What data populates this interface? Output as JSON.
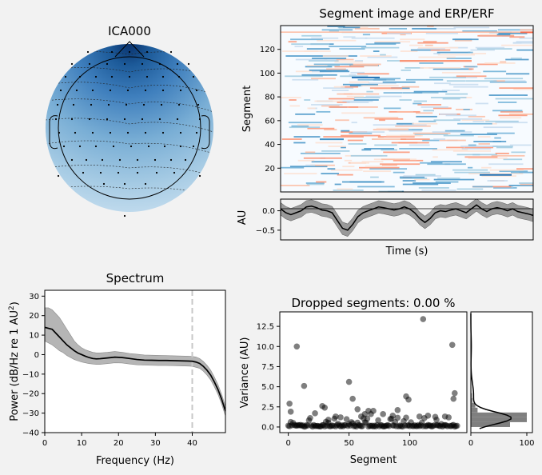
{
  "chart_data": [
    {
      "type": "heatmap",
      "panel": "topomap",
      "title": "ICA000",
      "colormap": "RdBu_r (blue-dominant, dark at front, light at back)"
    },
    {
      "type": "heatmap",
      "panel": "segment-image",
      "title": "Segment image and ERP/ERF",
      "ylabel": "Segment",
      "ylim": [
        0,
        140
      ],
      "yticks": [
        20,
        40,
        60,
        80,
        100,
        120
      ],
      "segments": 140
    },
    {
      "type": "line",
      "panel": "erp",
      "xlabel": "Time (s)",
      "ylabel": "AU",
      "ylim": [
        -0.75,
        0.3
      ],
      "yticks": [
        -0.5,
        0.0
      ],
      "yticklabels": [
        "−0.5",
        "0.0"
      ],
      "mean": [
        0.05,
        -0.05,
        -0.1,
        -0.05,
        0.0,
        0.1,
        0.12,
        0.08,
        0.02,
        0.0,
        -0.05,
        -0.25,
        -0.45,
        -0.5,
        -0.35,
        -0.15,
        -0.05,
        0.0,
        0.05,
        0.1,
        0.08,
        0.05,
        0.02,
        0.05,
        0.1,
        0.05,
        -0.05,
        -0.2,
        -0.3,
        -0.2,
        -0.05,
        0.0,
        -0.02,
        0.02,
        0.05,
        0.0,
        -0.05,
        0.05,
        0.15,
        0.05,
        -0.02,
        0.05,
        0.08,
        0.05,
        0.0,
        0.05,
        -0.02,
        -0.05,
        -0.08,
        -0.12
      ],
      "ci_halfwidth": 0.16
    },
    {
      "type": "line",
      "panel": "spectrum",
      "title": "Spectrum",
      "xlabel": "Frequency (Hz)",
      "ylabel": "Power (dB/Hz re 1 AU²)",
      "xlim": [
        0,
        49
      ],
      "ylim": [
        -40,
        33
      ],
      "xticks": [
        0,
        10,
        20,
        30,
        40
      ],
      "yticks": [
        -40,
        -30,
        -20,
        -10,
        0,
        10,
        20,
        30
      ],
      "yticklabels": [
        "−40",
        "−30",
        "−20",
        "−10",
        "0",
        "10",
        "20",
        "30"
      ],
      "x": [
        0,
        1,
        2,
        3,
        4,
        5,
        6,
        7,
        8,
        9,
        10,
        11,
        12,
        13,
        14,
        15,
        17,
        19,
        21,
        23,
        25,
        27,
        29,
        31,
        33,
        35,
        37,
        39,
        40,
        41,
        42,
        43,
        44,
        45,
        46,
        47,
        48,
        49
      ],
      "mean": [
        14,
        13.5,
        13,
        11,
        9,
        7,
        5,
        3.5,
        2,
        0.8,
        0,
        -0.8,
        -1.5,
        -2,
        -2.2,
        -2.1,
        -1.7,
        -1.3,
        -1.5,
        -2,
        -2.5,
        -2.8,
        -2.9,
        -3,
        -3,
        -3.1,
        -3.2,
        -3.3,
        -3.4,
        -3.8,
        -4.5,
        -6,
        -8,
        -10.5,
        -14,
        -18,
        -23,
        -29
      ],
      "upper": [
        24,
        24,
        23,
        21,
        19,
        16,
        13,
        10,
        7,
        5,
        3.5,
        2.5,
        1.8,
        1.2,
        0.9,
        0.9,
        1.2,
        1.6,
        1.2,
        0.6,
        0.2,
        -0.2,
        -0.3,
        -0.4,
        -0.5,
        -0.6,
        -0.7,
        -0.8,
        -0.9,
        -1.2,
        -2,
        -3.5,
        -5.5,
        -8,
        -11.5,
        -15.5,
        -20.5,
        -26.5
      ],
      "lower": [
        7,
        6,
        5,
        3.5,
        2,
        1,
        -0.5,
        -1.5,
        -2.5,
        -3.2,
        -3.8,
        -4.2,
        -4.6,
        -4.8,
        -5,
        -5,
        -4.6,
        -4.2,
        -4.3,
        -4.8,
        -5.2,
        -5.4,
        -5.5,
        -5.6,
        -5.6,
        -5.7,
        -5.8,
        -5.9,
        -6,
        -6.5,
        -7,
        -8.5,
        -10.5,
        -13,
        -16.5,
        -20.5,
        -25.5,
        -31.5
      ],
      "vline_x": 40
    },
    {
      "type": "scatter",
      "panel": "dropped-segments",
      "title": "Dropped segments: 0.00 %",
      "xlabel": "Segment",
      "ylabel": "Variance (AU)",
      "xlim": [
        -7,
        147
      ],
      "ylim": [
        -0.7,
        14.3
      ],
      "xticks": [
        0,
        50,
        100
      ],
      "yticks": [
        0,
        2.5,
        5,
        7.5,
        10,
        12.5
      ],
      "yticklabels": [
        "0.0",
        "2.5",
        "5.0",
        "7.5",
        "10.0",
        "12.5"
      ],
      "outliers": [
        [
          1,
          2.9
        ],
        [
          2,
          1.9
        ],
        [
          7,
          10.0
        ],
        [
          13,
          5.1
        ],
        [
          22,
          1.7
        ],
        [
          28,
          2.6
        ],
        [
          30,
          2.4
        ],
        [
          33,
          0.9
        ],
        [
          39,
          1.3
        ],
        [
          43,
          1.2
        ],
        [
          50,
          5.6
        ],
        [
          53,
          3.5
        ],
        [
          57,
          2.2
        ],
        [
          60,
          1.3
        ],
        [
          63,
          1.6
        ],
        [
          66,
          2.0
        ],
        [
          68,
          1.6
        ],
        [
          70,
          2.0
        ],
        [
          78,
          1.6
        ],
        [
          86,
          1.4
        ],
        [
          90,
          2.1
        ],
        [
          97,
          3.8
        ],
        [
          99,
          3.4
        ],
        [
          108,
          1.3
        ],
        [
          111,
          13.4
        ],
        [
          115,
          1.4
        ],
        [
          122,
          0.9
        ],
        [
          129,
          1.3
        ],
        [
          135,
          10.2
        ],
        [
          136,
          3.5
        ],
        [
          137,
          4.2
        ]
      ]
    },
    {
      "type": "bar",
      "panel": "variance-histogram",
      "xlim": [
        0,
        110
      ],
      "xticks": [
        0,
        100
      ],
      "bins": [
        [
          0.0,
          0.6,
          70
        ],
        [
          0.6,
          1.2,
          100
        ],
        [
          1.2,
          1.8,
          100
        ],
        [
          1.8,
          2.4,
          12
        ],
        [
          2.4,
          3.0,
          8
        ],
        [
          3.0,
          3.6,
          3
        ],
        [
          3.6,
          4.2,
          2
        ],
        [
          4.2,
          5.0,
          1
        ]
      ]
    }
  ]
}
